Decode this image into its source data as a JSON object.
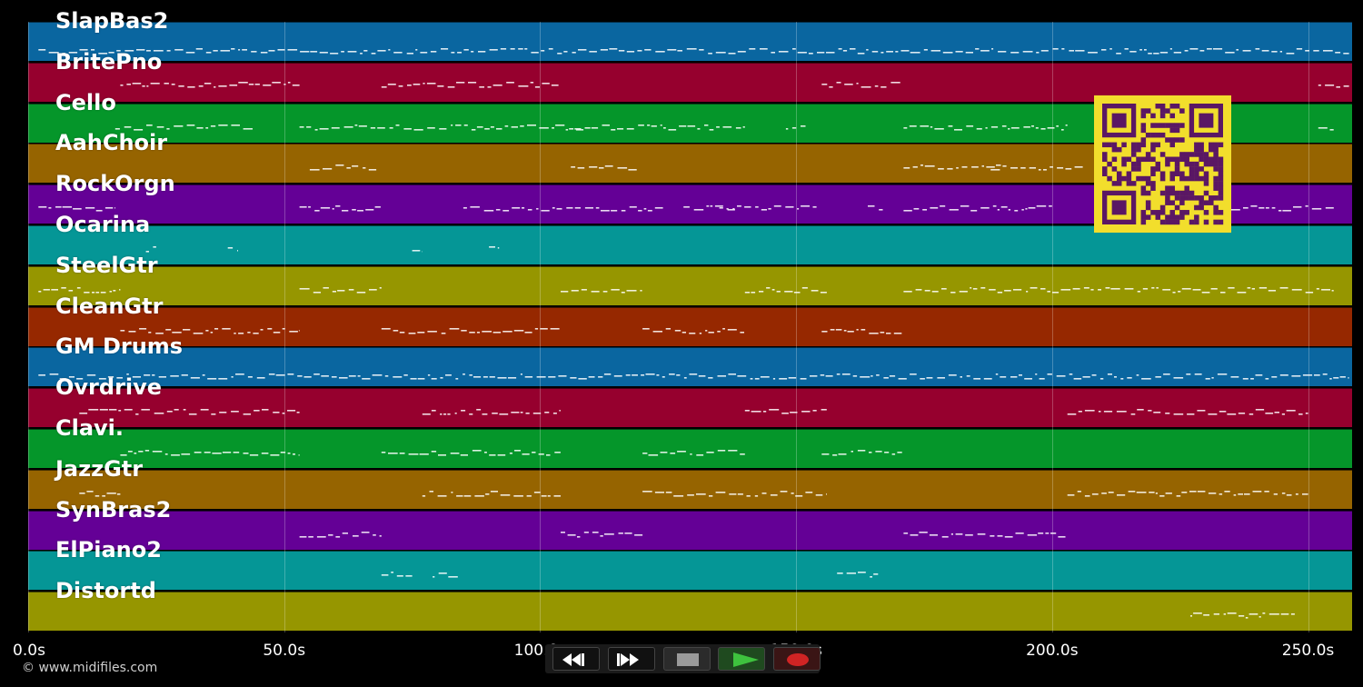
{
  "tracks": [
    {
      "name": "SlapBas2",
      "color": "#0a66a0"
    },
    {
      "name": "BritePno",
      "color": "#96002e"
    },
    {
      "name": "Cello",
      "color": "#05962a"
    },
    {
      "name": "AahChoir",
      "color": "#966400"
    },
    {
      "name": "RockOrgn",
      "color": "#640096"
    },
    {
      "name": "Ocarina",
      "color": "#059696"
    },
    {
      "name": "SteelGtr",
      "color": "#969600"
    },
    {
      "name": "CleanGtr",
      "color": "#962800"
    },
    {
      "name": "GM Drums",
      "color": "#0a66a0"
    },
    {
      "name": "Ovrdrive",
      "color": "#96002e"
    },
    {
      "name": "Clavi.",
      "color": "#05962a"
    },
    {
      "name": "JazzGtr",
      "color": "#966400"
    },
    {
      "name": "SynBras2",
      "color": "#640096"
    },
    {
      "name": "ElPiano2",
      "color": "#059696"
    },
    {
      "name": "Distortd",
      "color": "#969600"
    }
  ],
  "timeline": {
    "ticks": [
      "0.0s",
      "50.0s",
      "100.0s",
      "150.0s",
      "200.0s",
      "250.0s"
    ],
    "tick_seconds": [
      0,
      50,
      100,
      150,
      200,
      250
    ],
    "max_seconds": 258.6
  },
  "copyright": "© www.midifiles.com",
  "transport": {
    "buttons": [
      {
        "name": "rewind-button",
        "icon": "rewind-icon",
        "color": "#ffffff"
      },
      {
        "name": "fast-forward-button",
        "icon": "fast-forward-icon",
        "color": "#ffffff"
      },
      {
        "name": "stop-button",
        "icon": "stop-icon",
        "color": "#9a9a9a"
      },
      {
        "name": "play-button",
        "icon": "play-icon",
        "color": "#3ec23e"
      },
      {
        "name": "record-button",
        "icon": "record-icon",
        "color": "#d02424"
      }
    ]
  },
  "qr_code": {
    "foreground": "#5a1764",
    "background": "#f2de2c"
  },
  "note_segments": [
    [
      [
        2,
        258
      ]
    ],
    [
      [
        18,
        53
      ],
      [
        69,
        104
      ],
      [
        155,
        171
      ],
      [
        252,
        258
      ]
    ],
    [
      [
        17,
        44
      ],
      [
        53,
        105
      ],
      [
        105,
        108
      ],
      [
        107,
        140
      ],
      [
        148,
        152
      ],
      [
        171,
        203
      ],
      [
        252,
        255
      ]
    ],
    [
      [
        55,
        68
      ],
      [
        106,
        119
      ],
      [
        171,
        190
      ],
      [
        188,
        206
      ]
    ],
    [
      [
        2,
        17
      ],
      [
        53,
        69
      ],
      [
        85,
        124
      ],
      [
        128,
        138
      ],
      [
        135,
        154
      ],
      [
        164,
        167
      ],
      [
        171,
        200
      ],
      [
        235,
        255
      ]
    ],
    [
      [
        23,
        25
      ],
      [
        39,
        41
      ],
      [
        75,
        77
      ],
      [
        90,
        92
      ]
    ],
    [
      [
        2,
        18
      ],
      [
        53,
        69
      ],
      [
        104,
        120
      ],
      [
        140,
        156
      ],
      [
        171,
        255
      ]
    ],
    [
      [
        18,
        53
      ],
      [
        69,
        104
      ],
      [
        120,
        140
      ],
      [
        155,
        171
      ]
    ],
    [
      [
        2,
        258
      ]
    ],
    [
      [
        10,
        53
      ],
      [
        77,
        104
      ],
      [
        140,
        156
      ],
      [
        203,
        250
      ]
    ],
    [
      [
        18,
        53
      ],
      [
        69,
        104
      ],
      [
        120,
        140
      ],
      [
        155,
        171
      ]
    ],
    [
      [
        10,
        18
      ],
      [
        77,
        104
      ],
      [
        120,
        156
      ],
      [
        203,
        250
      ]
    ],
    [
      [
        53,
        69
      ],
      [
        104,
        120
      ],
      [
        171,
        203
      ]
    ],
    [
      [
        69,
        75
      ],
      [
        79,
        84
      ],
      [
        158,
        166
      ]
    ],
    [
      [
        227,
        248
      ]
    ]
  ]
}
